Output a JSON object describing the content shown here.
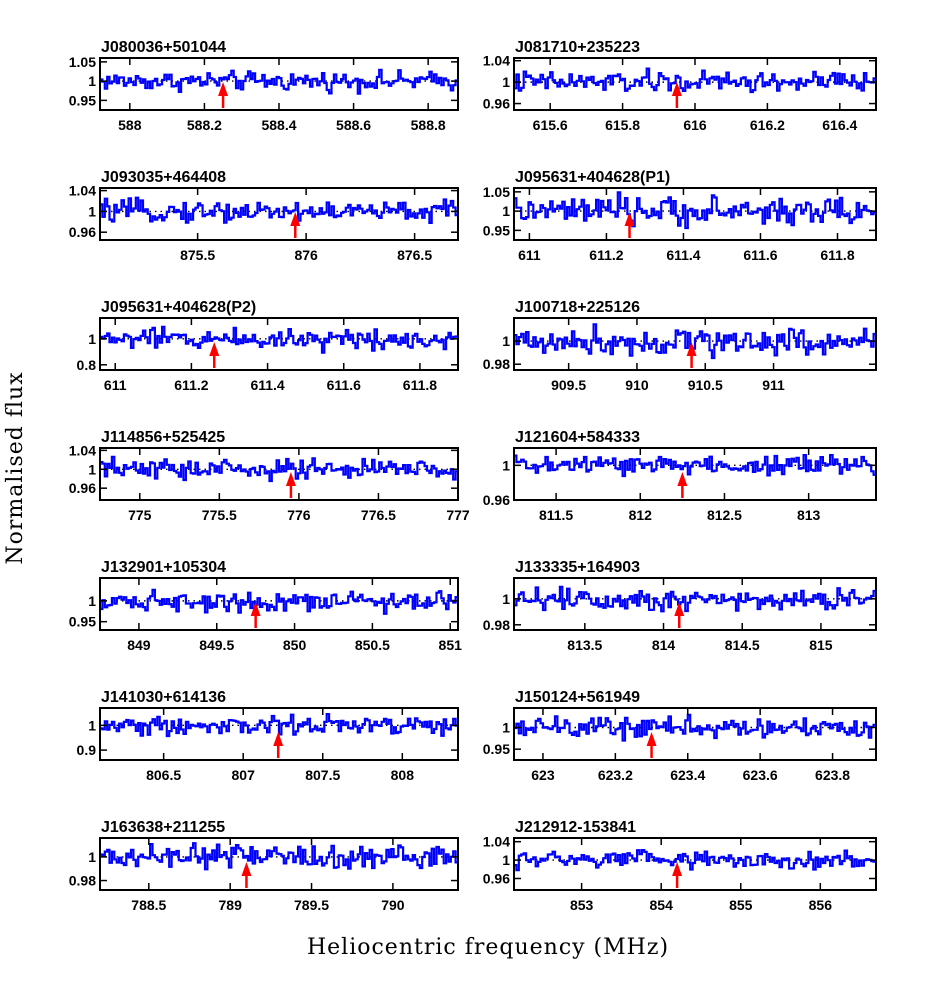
{
  "figure": {
    "ylabel": "Normalised flux",
    "xlabel": "Heliocentric frequency (MHz)"
  },
  "style": {
    "spectrum_color": "#0000ff",
    "arrow_color": "#ff0000"
  },
  "chart_data": [
    {
      "type": "line",
      "title": "J080036+501044",
      "xlim": [
        587.92,
        588.88
      ],
      "ylim": [
        0.925,
        1.06
      ],
      "xticks": [
        "588",
        "588.2",
        "588.4",
        "588.6",
        "588.8"
      ],
      "yticks": [
        "1.05",
        "1",
        "0.95"
      ],
      "arrow_x": 588.25,
      "noise": 0.012
    },
    {
      "type": "line",
      "title": "J081710+235223",
      "xlim": [
        615.5,
        616.5
      ],
      "ylim": [
        0.948,
        1.045
      ],
      "xticks": [
        "615.6",
        "615.8",
        "616",
        "616.2",
        "616.4"
      ],
      "yticks": [
        "1.04",
        "1",
        "0.96"
      ],
      "arrow_x": 615.95,
      "noise": 0.01
    },
    {
      "type": "line",
      "title": "J093035+464408",
      "xlim": [
        875.05,
        876.7
      ],
      "ylim": [
        0.945,
        1.045
      ],
      "xticks": [
        "875.5",
        "876",
        "876.5"
      ],
      "yticks": [
        "1.04",
        "1",
        "0.96"
      ],
      "arrow_x": 875.95,
      "noise": 0.01
    },
    {
      "type": "line",
      "title": "J095631+404628(P1)",
      "xlim": [
        610.96,
        611.9
      ],
      "ylim": [
        0.925,
        1.06
      ],
      "xticks": [
        "611",
        "611.2",
        "611.4",
        "611.6",
        "611.8"
      ],
      "yticks": [
        "1.05",
        "1",
        "0.95"
      ],
      "arrow_x": 611.26,
      "noise": 0.018
    },
    {
      "type": "line",
      "title": "J095631+404628(P2)",
      "xlim": [
        610.96,
        611.9
      ],
      "ylim": [
        0.76,
        1.16
      ],
      "xticks": [
        "611",
        "611.2",
        "611.4",
        "611.6",
        "611.8"
      ],
      "yticks": [
        "1",
        "0.8"
      ],
      "arrow_x": 611.26,
      "noise": 0.04
    },
    {
      "type": "line",
      "title": "J100718+225126",
      "xlim": [
        909.1,
        911.75
      ],
      "ylim": [
        0.975,
        1.02
      ],
      "xticks": [
        "909.5",
        "910",
        "910.5",
        "911"
      ],
      "yticks": [
        "1",
        "0.98"
      ],
      "arrow_x": 910.4,
      "noise": 0.006
    },
    {
      "type": "line",
      "title": "J114856+525425",
      "xlim": [
        774.75,
        777
      ],
      "ylim": [
        0.935,
        1.045
      ],
      "xticks": [
        "775",
        "775.5",
        "776",
        "776.5",
        "777"
      ],
      "yticks": [
        "1.04",
        "1",
        "0.96"
      ],
      "arrow_x": 775.95,
      "noise": 0.011
    },
    {
      "type": "line",
      "title": "J121604+584333",
      "xlim": [
        811.25,
        813.4
      ],
      "ylim": [
        0.96,
        1.02
      ],
      "xticks": [
        "811.5",
        "812",
        "812.5",
        "813"
      ],
      "yticks": [
        "1",
        "0.96"
      ],
      "arrow_x": 812.25,
      "noise": 0.006
    },
    {
      "type": "line",
      "title": "J132901+105304",
      "xlim": [
        848.75,
        851.05
      ],
      "ylim": [
        0.93,
        1.055
      ],
      "xticks": [
        "849",
        "849.5",
        "850",
        "850.5",
        "851"
      ],
      "yticks": [
        "1",
        "0.95"
      ],
      "arrow_x": 849.75,
      "noise": 0.012
    },
    {
      "type": "line",
      "title": "J133335+164903",
      "xlim": [
        813.05,
        815.35
      ],
      "ylim": [
        0.976,
        1.016
      ],
      "xticks": [
        "813.5",
        "814",
        "814.5",
        "815"
      ],
      "yticks": [
        "1",
        "0.98"
      ],
      "arrow_x": 814.1,
      "noise": 0.0045
    },
    {
      "type": "line",
      "title": "J141030+614136",
      "xlim": [
        806.1,
        808.35
      ],
      "ylim": [
        0.86,
        1.07
      ],
      "xticks": [
        "806.5",
        "807",
        "807.5",
        "808"
      ],
      "yticks": [
        "1",
        "0.9"
      ],
      "arrow_x": 807.22,
      "noise": 0.02
    },
    {
      "type": "line",
      "title": "J150124+561949",
      "xlim": [
        622.92,
        623.92
      ],
      "ylim": [
        0.925,
        1.045
      ],
      "xticks": [
        "623",
        "623.2",
        "623.4",
        "623.6",
        "623.8"
      ],
      "yticks": [
        "1",
        "0.95"
      ],
      "arrow_x": 623.3,
      "noise": 0.012
    },
    {
      "type": "line",
      "title": "J163638+211255",
      "xlim": [
        788.2,
        790.4
      ],
      "ylim": [
        0.972,
        1.016
      ],
      "xticks": [
        "788.5",
        "789",
        "789.5",
        "790"
      ],
      "yticks": [
        "1",
        "0.98"
      ],
      "arrow_x": 789.1,
      "noise": 0.005
    },
    {
      "type": "line",
      "title": "J212912-153841",
      "xlim": [
        852.15,
        856.7
      ],
      "ylim": [
        0.935,
        1.048
      ],
      "xticks": [
        "853",
        "854",
        "855",
        "856"
      ],
      "yticks": [
        "1.04",
        "1",
        "0.96"
      ],
      "arrow_x": 854.2,
      "noise": 0.01
    }
  ]
}
